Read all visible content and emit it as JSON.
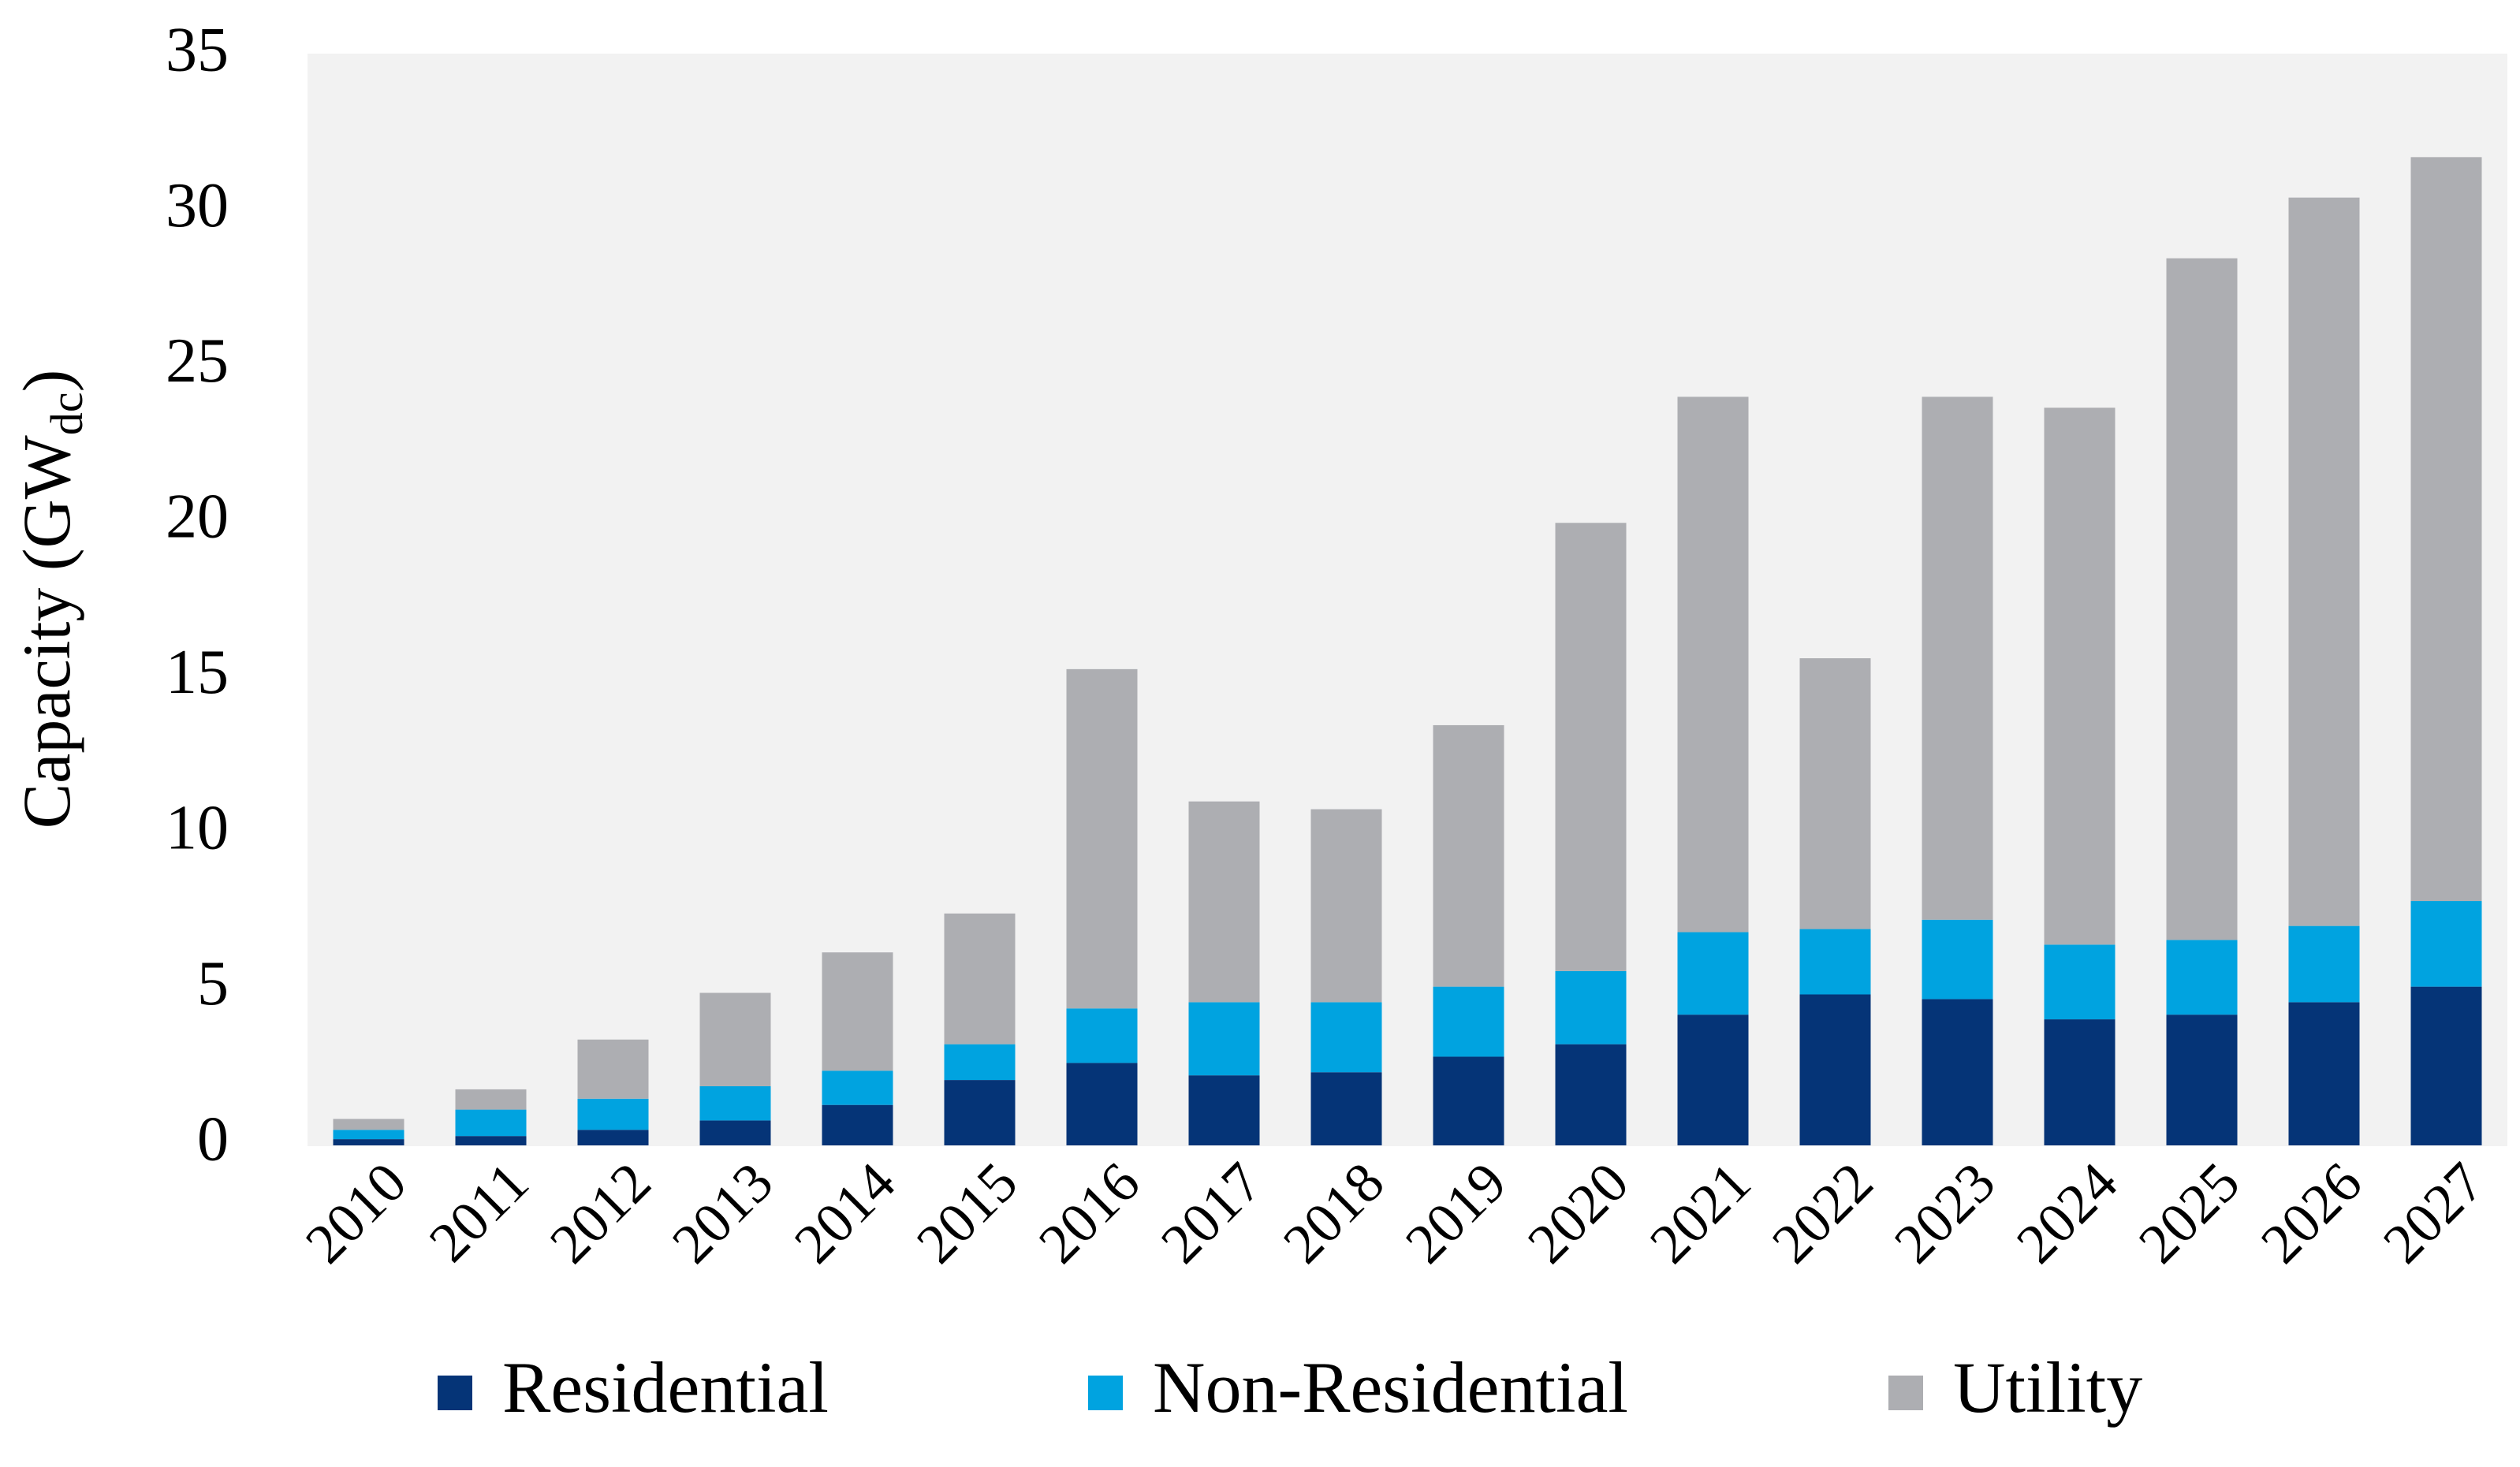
{
  "chart_data": {
    "type": "stacked_bar",
    "y_label": [
      "Capacity (GW",
      "dc",
      ")"
    ],
    "categories": [
      "2010",
      "2011",
      "2012",
      "2013",
      "2014",
      "2015",
      "2016",
      "2017",
      "2018",
      "2019",
      "2020",
      "2021",
      "2022",
      "2023",
      "2024",
      "2025",
      "2026",
      "2027"
    ],
    "series": [
      {
        "name": "Residential",
        "color": "#053477",
        "values": [
          0.2,
          0.3,
          0.5,
          0.8,
          1.3,
          2.1,
          2.65,
          2.25,
          2.35,
          2.85,
          3.25,
          4.2,
          4.85,
          4.7,
          4.05,
          4.2,
          4.6,
          5.1
        ]
      },
      {
        "name": "Non-Residential",
        "color": "#00a3e0",
        "values": [
          0.3,
          0.85,
          1.0,
          1.1,
          1.1,
          1.15,
          1.75,
          2.35,
          2.25,
          2.25,
          2.35,
          2.65,
          2.1,
          2.55,
          2.4,
          2.4,
          2.45,
          2.75
        ]
      },
      {
        "name": "Utility",
        "color": "#adaeb2",
        "values": [
          0.35,
          0.65,
          1.9,
          3.0,
          3.8,
          4.2,
          10.9,
          6.45,
          6.2,
          8.4,
          14.4,
          17.2,
          8.7,
          16.8,
          17.25,
          21.9,
          23.4,
          23.9
        ]
      }
    ],
    "ylim": [
      0,
      35
    ],
    "yticks": [
      0,
      5,
      10,
      15,
      20,
      25,
      30,
      35
    ],
    "grid": false,
    "legend": "bottom"
  }
}
